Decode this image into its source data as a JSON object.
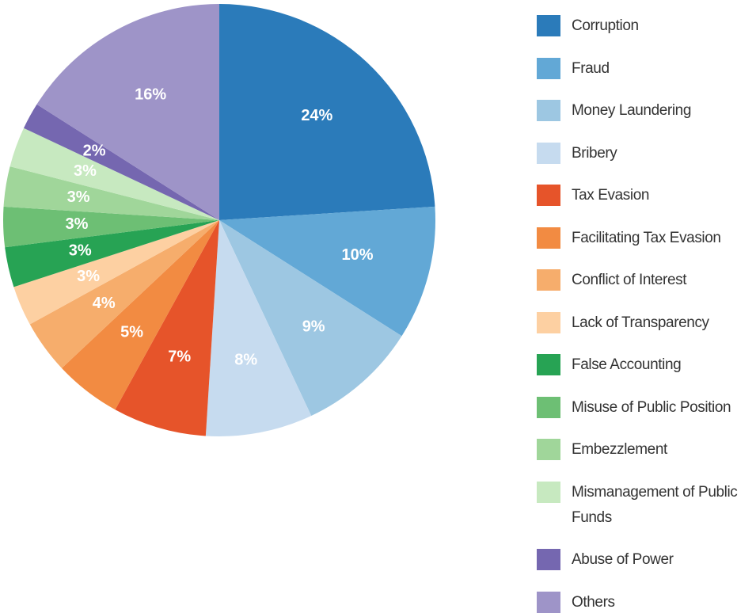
{
  "chart_data": {
    "type": "pie",
    "categories": [
      "Corruption",
      "Fraud",
      "Money Laundering",
      "Bribery",
      "Tax Evasion",
      "Facilitating Tax Evasion",
      "Conflict of Interest",
      "Lack of Transparency",
      "False Accounting",
      "Misuse of Public Position",
      "Embezzlement",
      "Mismanagement of Public Funds",
      "Abuse of Power",
      "Others"
    ],
    "values": [
      24,
      10,
      9,
      8,
      7,
      5,
      4,
      3,
      3,
      3,
      3,
      3,
      2,
      16
    ],
    "value_labels": [
      "24%",
      "10%",
      "9%",
      "8%",
      "7%",
      "5%",
      "4%",
      "3%",
      "3%",
      "3%",
      "3%",
      "3%",
      "2%",
      "16%"
    ],
    "colors": [
      "#2b7bba",
      "#62a8d6",
      "#9dc7e2",
      "#c6dbef",
      "#e6542a",
      "#f28b42",
      "#f6ad6c",
      "#fdd0a2",
      "#27a354",
      "#6dbf74",
      "#a0d69a",
      "#c7e9c0",
      "#7567b0",
      "#9e94c8"
    ],
    "legend": "right"
  }
}
